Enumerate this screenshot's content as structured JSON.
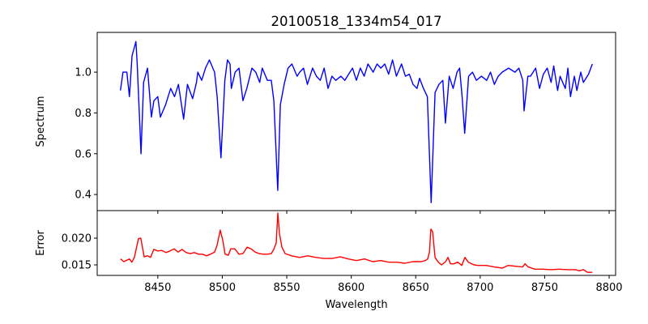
{
  "chart_data": [
    {
      "type": "line",
      "title": "20100518_1334m54_017",
      "xlabel": "",
      "ylabel": "Spectrum",
      "xlim": [
        8403,
        8805
      ],
      "ylim": [
        0.321,
        1.195
      ],
      "yticks": [
        0.4,
        0.6,
        0.8,
        1.0
      ],
      "ytick_labels": [
        "0.4",
        "0.6",
        "0.8",
        "1.0"
      ],
      "grid": false,
      "color": "#0000ff",
      "series": [
        {
          "name": "Spectrum",
          "x": [
            8421,
            8423,
            8426,
            8428,
            8430,
            8433,
            8434,
            8437,
            8439,
            8442,
            8445,
            8447,
            8450,
            8452,
            8456,
            8460,
            8463,
            8466,
            8470,
            8473,
            8477,
            8480,
            8481,
            8484,
            8487,
            8490,
            8494,
            8496,
            8499,
            8502,
            8504,
            8506,
            8507,
            8510,
            8513,
            8516,
            8519,
            8523,
            8526,
            8529,
            8531,
            8535,
            8538,
            8540,
            8543,
            8545,
            8548,
            8551,
            8554,
            8558,
            8560,
            8563,
            8566,
            8570,
            8573,
            8576,
            8579,
            8582,
            8585,
            8588,
            8592,
            8595,
            8598,
            8601,
            8604,
            8607,
            8610,
            8613,
            8617,
            8620,
            8623,
            8626,
            8629,
            8632,
            8635,
            8639,
            8642,
            8645,
            8648,
            8651,
            8653,
            8656,
            8659,
            8662,
            8665,
            8668,
            8671,
            8673,
            8676,
            8679,
            8682,
            8684,
            8686,
            8688,
            8691,
            8694,
            8697,
            8701,
            8705,
            8708,
            8711,
            8714,
            8717,
            8722,
            8727,
            8730,
            8733,
            8734,
            8737,
            8739,
            8743,
            8746,
            8749,
            8752,
            8755,
            8757,
            8760,
            8762,
            8766,
            8768,
            8770,
            8773,
            8775,
            8778,
            8780,
            8784,
            8787
          ],
          "y": [
            0.91,
            1.0,
            1.0,
            0.88,
            1.08,
            1.15,
            1.04,
            0.6,
            0.95,
            1.02,
            0.78,
            0.86,
            0.88,
            0.78,
            0.84,
            0.92,
            0.88,
            0.94,
            0.77,
            0.94,
            0.87,
            0.95,
            1.0,
            0.96,
            1.02,
            1.06,
            1.0,
            0.88,
            0.58,
            0.96,
            1.06,
            1.04,
            0.92,
            1.0,
            1.02,
            0.86,
            0.92,
            1.02,
            1.0,
            0.95,
            1.02,
            0.96,
            0.96,
            0.86,
            0.42,
            0.84,
            0.94,
            1.02,
            1.04,
            0.98,
            1.0,
            1.02,
            0.94,
            1.02,
            0.98,
            0.96,
            1.02,
            0.92,
            0.98,
            0.96,
            0.98,
            0.96,
            0.99,
            1.02,
            0.96,
            1.02,
            0.98,
            1.04,
            1.0,
            1.04,
            1.02,
            1.04,
            0.99,
            1.06,
            0.98,
            1.04,
            0.98,
            0.99,
            0.94,
            0.92,
            0.97,
            0.92,
            0.88,
            0.36,
            0.9,
            0.94,
            0.96,
            0.75,
            0.98,
            0.92,
            1.0,
            1.02,
            0.88,
            0.7,
            0.98,
            1.0,
            0.96,
            0.98,
            0.96,
            1.0,
            0.94,
            0.98,
            1.0,
            1.02,
            1.0,
            1.02,
            0.96,
            0.81,
            0.98,
            0.98,
            1.02,
            0.92,
            0.99,
            1.02,
            0.95,
            1.03,
            0.91,
            0.98,
            0.92,
            1.02,
            0.88,
            0.98,
            0.91,
            1.0,
            0.95,
            0.99,
            1.04
          ]
        }
      ]
    },
    {
      "type": "line",
      "title": "",
      "xlabel": "Wavelength",
      "ylabel": "Error",
      "xlim": [
        8403,
        8805
      ],
      "ylim": [
        0.01303,
        0.02515
      ],
      "xticks": [
        8450,
        8500,
        8550,
        8600,
        8650,
        8700,
        8750,
        8800
      ],
      "xtick_labels": [
        "8450",
        "8500",
        "8550",
        "8600",
        "8650",
        "8700",
        "8750",
        "8800"
      ],
      "yticks": [
        0.015,
        0.02
      ],
      "ytick_labels": [
        "0.015",
        "0.020"
      ],
      "grid": false,
      "color": "#ff0000",
      "series": [
        {
          "name": "Error",
          "x": [
            8421.1,
            8423.6,
            8428.0,
            8429.9,
            8431.8,
            8435.0,
            8436.8,
            8439.4,
            8441.9,
            8444.4,
            8446.9,
            8450.0,
            8453.2,
            8456.3,
            8459.5,
            8462.6,
            8465.7,
            8468.9,
            8472.0,
            8475.2,
            8478.3,
            8481.5,
            8484.6,
            8487.7,
            8490.9,
            8494.0,
            8495.9,
            8498.4,
            8500.3,
            8502.2,
            8504.7,
            8506.6,
            8509.7,
            8512.9,
            8516.0,
            8519.2,
            8522.3,
            8525.5,
            8528.6,
            8531.7,
            8534.9,
            8538.0,
            8539.9,
            8541.8,
            8543.1,
            8544.3,
            8546.2,
            8548.7,
            8553.7,
            8560.0,
            8566.3,
            8572.6,
            8578.9,
            8585.2,
            8591.5,
            8597.7,
            8604.0,
            8610.3,
            8616.6,
            8622.9,
            8629.2,
            8635.4,
            8641.7,
            8648.0,
            8654.3,
            8657.4,
            8659.3,
            8660.6,
            8661.8,
            8663.1,
            8665.0,
            8667.5,
            8670.0,
            8673.2,
            8675.0,
            8677.0,
            8679.5,
            8682.6,
            8685.7,
            8688.2,
            8690.8,
            8695.2,
            8698.3,
            8704.6,
            8710.9,
            8717.2,
            8721.6,
            8732.9,
            8734.8,
            8737.3,
            8742.3,
            8748.6,
            8754.9,
            8761.2,
            8767.5,
            8773.7,
            8776.9,
            8780.0,
            8783.2,
            8786.9
          ],
          "y": [
            0.0161,
            0.0156,
            0.0161,
            0.0155,
            0.0164,
            0.0199,
            0.02,
            0.0165,
            0.0167,
            0.0164,
            0.0179,
            0.0176,
            0.0177,
            0.0173,
            0.0176,
            0.018,
            0.0174,
            0.0179,
            0.0173,
            0.0171,
            0.0173,
            0.017,
            0.017,
            0.0167,
            0.017,
            0.0174,
            0.0186,
            0.0215,
            0.0197,
            0.017,
            0.0168,
            0.018,
            0.018,
            0.017,
            0.0171,
            0.0183,
            0.018,
            0.0174,
            0.0171,
            0.017,
            0.017,
            0.0171,
            0.0179,
            0.0191,
            0.0247,
            0.0209,
            0.0183,
            0.0171,
            0.0167,
            0.0164,
            0.0167,
            0.0164,
            0.0162,
            0.0162,
            0.0165,
            0.0161,
            0.0158,
            0.0161,
            0.0156,
            0.0158,
            0.0155,
            0.0155,
            0.0153,
            0.0156,
            0.0156,
            0.0158,
            0.0161,
            0.0173,
            0.0217,
            0.0212,
            0.0164,
            0.0155,
            0.015,
            0.0156,
            0.0164,
            0.0152,
            0.0152,
            0.0155,
            0.0149,
            0.0164,
            0.0155,
            0.015,
            0.0149,
            0.0149,
            0.0146,
            0.0144,
            0.0149,
            0.0146,
            0.0152,
            0.0146,
            0.0142,
            0.0142,
            0.0141,
            0.0142,
            0.0141,
            0.0141,
            0.0139,
            0.0141,
            0.0136,
            0.0136
          ]
        }
      ]
    }
  ]
}
